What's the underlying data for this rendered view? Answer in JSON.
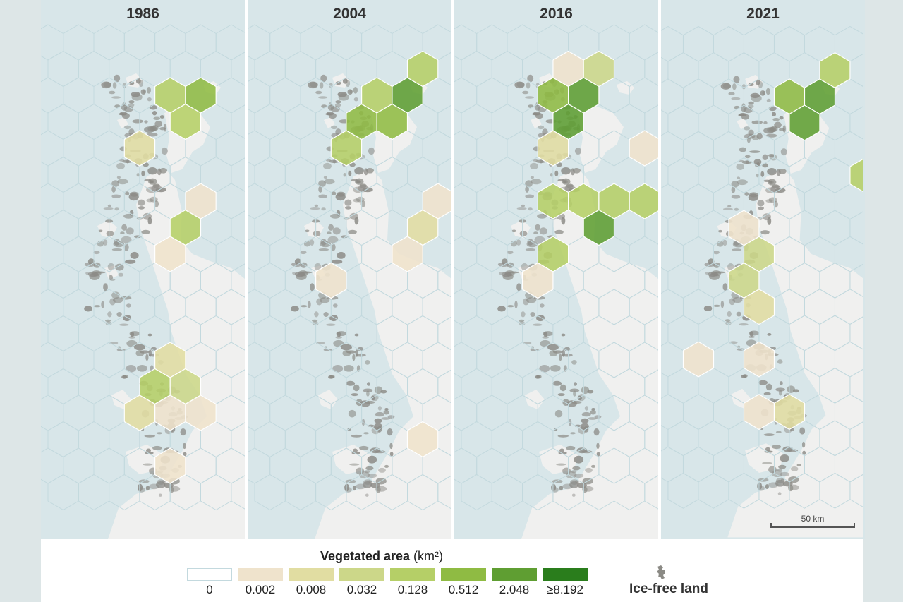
{
  "colors": {
    "water": "#d8e6e9",
    "land": "#f0f0ef",
    "rock": "#8b8a85",
    "hex_outline": "#c3d9de",
    "classes": [
      "#ffffff",
      "#efe3cc",
      "#e1dda2",
      "#ccd789",
      "#b5cf67",
      "#8fbb43",
      "#5f9e32",
      "#2a7d1c"
    ]
  },
  "panels": [
    {
      "year": "1986",
      "hexes": [
        {
          "c": 4,
          "r": 2,
          "v": 4
        },
        {
          "c": 5,
          "r": 2,
          "v": 5
        },
        {
          "c": 4,
          "r": 3,
          "v": 4
        },
        {
          "c": 3,
          "r": 4,
          "v": 2
        },
        {
          "c": 4,
          "r": 7,
          "v": 4
        },
        {
          "c": 4,
          "r": 8,
          "v": 1
        },
        {
          "c": 5,
          "r": 6,
          "v": 1
        },
        {
          "c": 8,
          "r": 5,
          "v": 1
        },
        {
          "c": 4,
          "r": 12,
          "v": 2
        },
        {
          "c": 3,
          "r": 13,
          "v": 4
        },
        {
          "c": 4,
          "r": 13,
          "v": 3
        },
        {
          "c": 5,
          "r": 14,
          "v": 1
        },
        {
          "c": 3,
          "r": 14,
          "v": 2
        },
        {
          "c": 4,
          "r": 14,
          "v": 1
        },
        {
          "c": 4,
          "r": 16,
          "v": 1
        }
      ]
    },
    {
      "year": "2004",
      "hexes": [
        {
          "c": 4,
          "r": 2,
          "v": 4
        },
        {
          "c": 5,
          "r": 2,
          "v": 6
        },
        {
          "c": 3,
          "r": 3,
          "v": 5
        },
        {
          "c": 4,
          "r": 3,
          "v": 5
        },
        {
          "c": 3,
          "r": 4,
          "v": 4
        },
        {
          "c": 5,
          "r": 1,
          "v": 4
        },
        {
          "c": 7,
          "r": 4,
          "v": 1
        },
        {
          "c": 7,
          "r": 5,
          "v": 1
        },
        {
          "c": 6,
          "r": 6,
          "v": 1
        },
        {
          "c": 5,
          "r": 7,
          "v": 2
        },
        {
          "c": 5,
          "r": 8,
          "v": 1
        },
        {
          "c": 2,
          "r": 9,
          "v": 1
        },
        {
          "c": 5,
          "r": 15,
          "v": 1
        },
        {
          "c": 8,
          "r": 5,
          "v": 1
        }
      ]
    },
    {
      "year": "2016",
      "hexes": [
        {
          "c": 3,
          "r": 1,
          "v": 1
        },
        {
          "c": 4,
          "r": 1,
          "v": 3
        },
        {
          "c": 3,
          "r": 2,
          "v": 5
        },
        {
          "c": 4,
          "r": 2,
          "v": 6
        },
        {
          "c": 3,
          "r": 3,
          "v": 6
        },
        {
          "c": 3,
          "r": 4,
          "v": 2
        },
        {
          "c": 7,
          "r": 4,
          "v": 4
        },
        {
          "c": 6,
          "r": 4,
          "v": 1
        },
        {
          "c": 7,
          "r": 5,
          "v": 4
        },
        {
          "c": 7,
          "r": 3,
          "v": 3
        },
        {
          "c": 3,
          "r": 6,
          "v": 4
        },
        {
          "c": 4,
          "r": 6,
          "v": 4
        },
        {
          "c": 5,
          "r": 6,
          "v": 4
        },
        {
          "c": 4,
          "r": 7,
          "v": 6
        },
        {
          "c": 3,
          "r": 8,
          "v": 4
        },
        {
          "c": 2,
          "r": 9,
          "v": 1
        },
        {
          "c": 6,
          "r": 6,
          "v": 4
        }
      ]
    },
    {
      "year": "2021",
      "hexes": [
        {
          "c": 4,
          "r": 2,
          "v": 5
        },
        {
          "c": 5,
          "r": 2,
          "v": 6
        },
        {
          "c": 5,
          "r": 1,
          "v": 4
        },
        {
          "c": 4,
          "r": 3,
          "v": 6
        },
        {
          "c": 8,
          "r": 3,
          "v": 4
        },
        {
          "c": 9,
          "r": 3,
          "v": 4
        },
        {
          "c": 7,
          "r": 4,
          "v": 5
        },
        {
          "c": 8,
          "r": 4,
          "v": 4
        },
        {
          "c": 6,
          "r": 5,
          "v": 4
        },
        {
          "c": 7,
          "r": 5,
          "v": 5
        },
        {
          "c": 8,
          "r": 5,
          "v": 4
        },
        {
          "c": 7,
          "r": 6,
          "v": 4
        },
        {
          "c": 8,
          "r": 6,
          "v": 1
        },
        {
          "c": 2,
          "r": 7,
          "v": 1
        },
        {
          "c": 3,
          "r": 8,
          "v": 3
        },
        {
          "c": 2,
          "r": 9,
          "v": 3
        },
        {
          "c": 3,
          "r": 10,
          "v": 2
        },
        {
          "c": 1,
          "r": 12,
          "v": 1
        },
        {
          "c": 3,
          "r": 12,
          "v": 1
        },
        {
          "c": 3,
          "r": 14,
          "v": 1
        },
        {
          "c": 4,
          "r": 14,
          "v": 2
        }
      ]
    }
  ],
  "legend": {
    "title": "Vegetated area",
    "unit": "(km²)",
    "classes": [
      "0",
      "0.002",
      "0.008",
      "0.032",
      "0.128",
      "0.512",
      "2.048",
      "≥8.192"
    ],
    "icefree_label": "Ice-free land",
    "icon": "ice-free-land-icon"
  },
  "scalebar": {
    "label": "50 km"
  }
}
